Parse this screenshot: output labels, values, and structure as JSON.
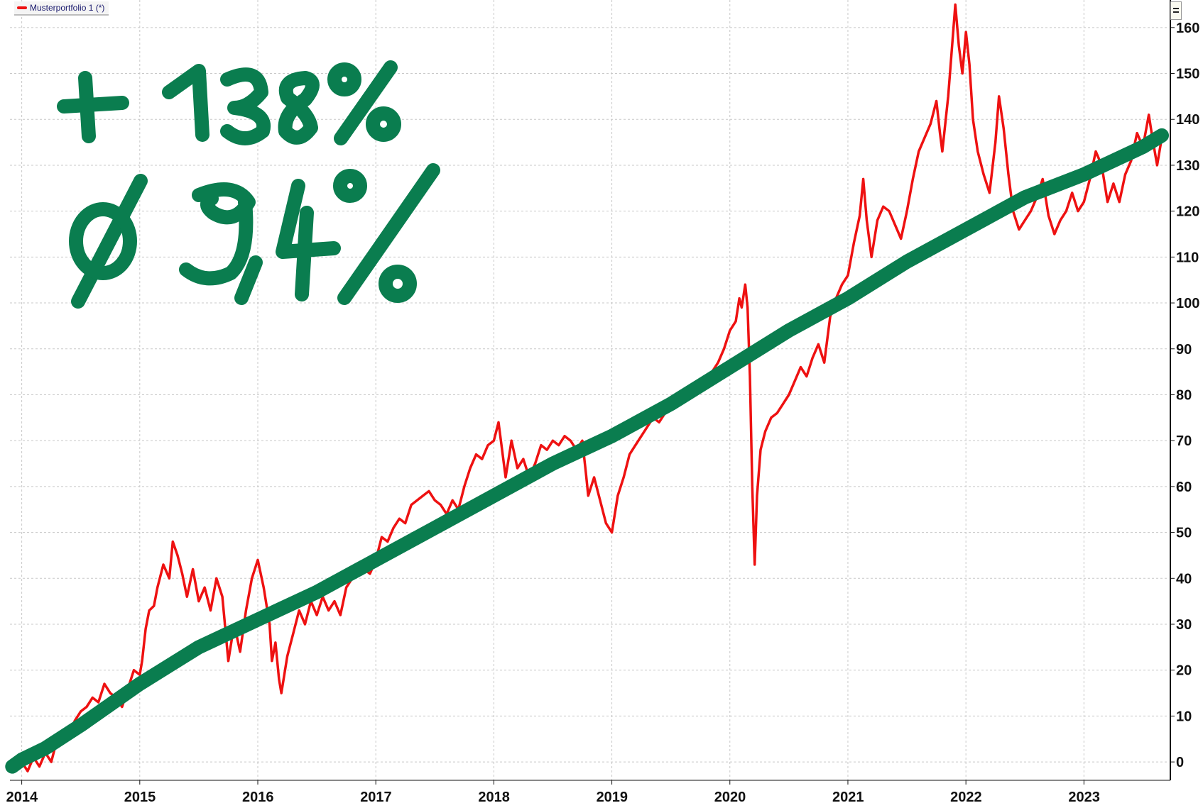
{
  "colors": {
    "series": "#ee1111",
    "trend": "#0a7d4f",
    "legend_text": "#1a1a6e"
  },
  "legend": {
    "label": "Musterportfolio 1 (*)"
  },
  "annotations": {
    "total_return": "+ 138%",
    "avg_return": "Ø 9,4%"
  },
  "icons": {
    "menu": "menu-icon"
  },
  "chart_data": {
    "type": "line",
    "title": "",
    "xlabel": "",
    "ylabel": "",
    "xlim": [
      2013.9,
      2023.72
    ],
    "ylim": [
      -4,
      166
    ],
    "y_axis_position": "right",
    "grid": true,
    "legend_position": "top-left",
    "x_ticks": [
      "2014",
      "2015",
      "2016",
      "2017",
      "2018",
      "2019",
      "2020",
      "2021",
      "2022",
      "2023"
    ],
    "y_ticks": [
      "0",
      "10",
      "20",
      "30",
      "40",
      "50",
      "60",
      "70",
      "80",
      "90",
      "100",
      "110",
      "120",
      "130",
      "140",
      "150",
      "160"
    ],
    "series": [
      {
        "name": "Musterportfolio 1 (*)",
        "color": "#ee1111",
        "points": [
          [
            2013.95,
            -1
          ],
          [
            2014.0,
            0
          ],
          [
            2014.05,
            -2
          ],
          [
            2014.1,
            1
          ],
          [
            2014.15,
            -1
          ],
          [
            2014.2,
            2
          ],
          [
            2014.25,
            0
          ],
          [
            2014.3,
            5
          ],
          [
            2014.35,
            7
          ],
          [
            2014.4,
            6
          ],
          [
            2014.45,
            9
          ],
          [
            2014.5,
            11
          ],
          [
            2014.55,
            12
          ],
          [
            2014.6,
            14
          ],
          [
            2014.65,
            13
          ],
          [
            2014.7,
            17
          ],
          [
            2014.75,
            15
          ],
          [
            2014.8,
            14
          ],
          [
            2014.85,
            12
          ],
          [
            2014.9,
            16
          ],
          [
            2014.95,
            20
          ],
          [
            2015.0,
            19
          ],
          [
            2015.02,
            22
          ],
          [
            2015.05,
            29
          ],
          [
            2015.08,
            33
          ],
          [
            2015.12,
            34
          ],
          [
            2015.15,
            38
          ],
          [
            2015.2,
            43
          ],
          [
            2015.25,
            40
          ],
          [
            2015.28,
            48
          ],
          [
            2015.32,
            45
          ],
          [
            2015.36,
            41
          ],
          [
            2015.4,
            36
          ],
          [
            2015.45,
            42
          ],
          [
            2015.5,
            35
          ],
          [
            2015.55,
            38
          ],
          [
            2015.6,
            33
          ],
          [
            2015.65,
            40
          ],
          [
            2015.7,
            36
          ],
          [
            2015.75,
            22
          ],
          [
            2015.8,
            30
          ],
          [
            2015.85,
            24
          ],
          [
            2015.9,
            33
          ],
          [
            2015.95,
            40
          ],
          [
            2016.0,
            44
          ],
          [
            2016.05,
            38
          ],
          [
            2016.1,
            30
          ],
          [
            2016.12,
            22
          ],
          [
            2016.15,
            26
          ],
          [
            2016.18,
            18
          ],
          [
            2016.2,
            15
          ],
          [
            2016.25,
            23
          ],
          [
            2016.3,
            28
          ],
          [
            2016.35,
            33
          ],
          [
            2016.4,
            30
          ],
          [
            2016.45,
            35
          ],
          [
            2016.5,
            32
          ],
          [
            2016.55,
            36
          ],
          [
            2016.6,
            33
          ],
          [
            2016.65,
            35
          ],
          [
            2016.7,
            32
          ],
          [
            2016.75,
            38
          ],
          [
            2016.8,
            40
          ],
          [
            2016.85,
            41
          ],
          [
            2016.9,
            42
          ],
          [
            2016.95,
            41
          ],
          [
            2017.0,
            44
          ],
          [
            2017.05,
            49
          ],
          [
            2017.1,
            48
          ],
          [
            2017.15,
            51
          ],
          [
            2017.2,
            53
          ],
          [
            2017.25,
            52
          ],
          [
            2017.3,
            56
          ],
          [
            2017.35,
            57
          ],
          [
            2017.4,
            58
          ],
          [
            2017.45,
            59
          ],
          [
            2017.5,
            57
          ],
          [
            2017.55,
            56
          ],
          [
            2017.6,
            54
          ],
          [
            2017.65,
            57
          ],
          [
            2017.7,
            55
          ],
          [
            2017.75,
            60
          ],
          [
            2017.8,
            64
          ],
          [
            2017.85,
            67
          ],
          [
            2017.9,
            66
          ],
          [
            2017.95,
            69
          ],
          [
            2018.0,
            70
          ],
          [
            2018.04,
            74
          ],
          [
            2018.07,
            68
          ],
          [
            2018.1,
            62
          ],
          [
            2018.15,
            70
          ],
          [
            2018.2,
            64
          ],
          [
            2018.25,
            66
          ],
          [
            2018.3,
            62
          ],
          [
            2018.35,
            65
          ],
          [
            2018.4,
            69
          ],
          [
            2018.45,
            68
          ],
          [
            2018.5,
            70
          ],
          [
            2018.55,
            69
          ],
          [
            2018.6,
            71
          ],
          [
            2018.65,
            70
          ],
          [
            2018.7,
            68
          ],
          [
            2018.75,
            70
          ],
          [
            2018.78,
            63
          ],
          [
            2018.8,
            58
          ],
          [
            2018.85,
            62
          ],
          [
            2018.9,
            57
          ],
          [
            2018.95,
            52
          ],
          [
            2019.0,
            50
          ],
          [
            2019.05,
            58
          ],
          [
            2019.1,
            62
          ],
          [
            2019.15,
            67
          ],
          [
            2019.2,
            69
          ],
          [
            2019.25,
            71
          ],
          [
            2019.3,
            73
          ],
          [
            2019.35,
            75
          ],
          [
            2019.4,
            74
          ],
          [
            2019.45,
            76
          ],
          [
            2019.5,
            78
          ],
          [
            2019.55,
            80
          ],
          [
            2019.6,
            81
          ],
          [
            2019.65,
            79
          ],
          [
            2019.7,
            82
          ],
          [
            2019.75,
            83
          ],
          [
            2019.8,
            84
          ],
          [
            2019.85,
            85
          ],
          [
            2019.9,
            87
          ],
          [
            2019.95,
            90
          ],
          [
            2020.0,
            94
          ],
          [
            2020.05,
            96
          ],
          [
            2020.08,
            101
          ],
          [
            2020.1,
            99
          ],
          [
            2020.13,
            104
          ],
          [
            2020.15,
            99
          ],
          [
            2020.17,
            84
          ],
          [
            2020.19,
            60
          ],
          [
            2020.21,
            43
          ],
          [
            2020.23,
            58
          ],
          [
            2020.26,
            68
          ],
          [
            2020.3,
            72
          ],
          [
            2020.35,
            75
          ],
          [
            2020.4,
            76
          ],
          [
            2020.45,
            78
          ],
          [
            2020.5,
            80
          ],
          [
            2020.55,
            83
          ],
          [
            2020.6,
            86
          ],
          [
            2020.65,
            84
          ],
          [
            2020.7,
            88
          ],
          [
            2020.75,
            91
          ],
          [
            2020.8,
            87
          ],
          [
            2020.85,
            97
          ],
          [
            2020.9,
            101
          ],
          [
            2020.95,
            104
          ],
          [
            2021.0,
            106
          ],
          [
            2021.05,
            113
          ],
          [
            2021.1,
            119
          ],
          [
            2021.13,
            127
          ],
          [
            2021.16,
            118
          ],
          [
            2021.2,
            110
          ],
          [
            2021.25,
            118
          ],
          [
            2021.3,
            121
          ],
          [
            2021.35,
            120
          ],
          [
            2021.4,
            117
          ],
          [
            2021.45,
            114
          ],
          [
            2021.5,
            120
          ],
          [
            2021.55,
            127
          ],
          [
            2021.6,
            133
          ],
          [
            2021.65,
            136
          ],
          [
            2021.7,
            139
          ],
          [
            2021.75,
            144
          ],
          [
            2021.78,
            137
          ],
          [
            2021.8,
            133
          ],
          [
            2021.85,
            145
          ],
          [
            2021.88,
            155
          ],
          [
            2021.91,
            165
          ],
          [
            2021.94,
            156
          ],
          [
            2021.97,
            150
          ],
          [
            2022.0,
            159
          ],
          [
            2022.03,
            152
          ],
          [
            2022.06,
            140
          ],
          [
            2022.1,
            133
          ],
          [
            2022.15,
            128
          ],
          [
            2022.2,
            124
          ],
          [
            2022.25,
            135
          ],
          [
            2022.28,
            145
          ],
          [
            2022.32,
            138
          ],
          [
            2022.36,
            128
          ],
          [
            2022.4,
            120
          ],
          [
            2022.45,
            116
          ],
          [
            2022.5,
            118
          ],
          [
            2022.55,
            120
          ],
          [
            2022.6,
            123
          ],
          [
            2022.65,
            127
          ],
          [
            2022.7,
            119
          ],
          [
            2022.75,
            115
          ],
          [
            2022.8,
            118
          ],
          [
            2022.85,
            120
          ],
          [
            2022.9,
            124
          ],
          [
            2022.95,
            120
          ],
          [
            2023.0,
            122
          ],
          [
            2023.05,
            127
          ],
          [
            2023.1,
            133
          ],
          [
            2023.15,
            130
          ],
          [
            2023.2,
            122
          ],
          [
            2023.25,
            126
          ],
          [
            2023.3,
            122
          ],
          [
            2023.35,
            128
          ],
          [
            2023.4,
            131
          ],
          [
            2023.45,
            137
          ],
          [
            2023.5,
            134
          ],
          [
            2023.55,
            141
          ],
          [
            2023.58,
            136
          ],
          [
            2023.62,
            130
          ],
          [
            2023.66,
            136
          ]
        ]
      },
      {
        "name": "",
        "color": "#0a7d4f",
        "points": [
          [
            2013.92,
            -1
          ],
          [
            2014.0,
            0.5
          ],
          [
            2014.2,
            3
          ],
          [
            2014.5,
            8
          ],
          [
            2015.0,
            17
          ],
          [
            2015.5,
            25
          ],
          [
            2016.0,
            31
          ],
          [
            2016.5,
            37
          ],
          [
            2017.0,
            44
          ],
          [
            2017.5,
            51
          ],
          [
            2018.0,
            58
          ],
          [
            2018.5,
            65
          ],
          [
            2019.0,
            71
          ],
          [
            2019.5,
            78
          ],
          [
            2020.0,
            86
          ],
          [
            2020.5,
            94
          ],
          [
            2021.0,
            101
          ],
          [
            2021.5,
            109
          ],
          [
            2022.0,
            116
          ],
          [
            2022.5,
            123
          ],
          [
            2023.0,
            128
          ],
          [
            2023.5,
            134
          ],
          [
            2023.66,
            136.5
          ]
        ]
      }
    ]
  }
}
